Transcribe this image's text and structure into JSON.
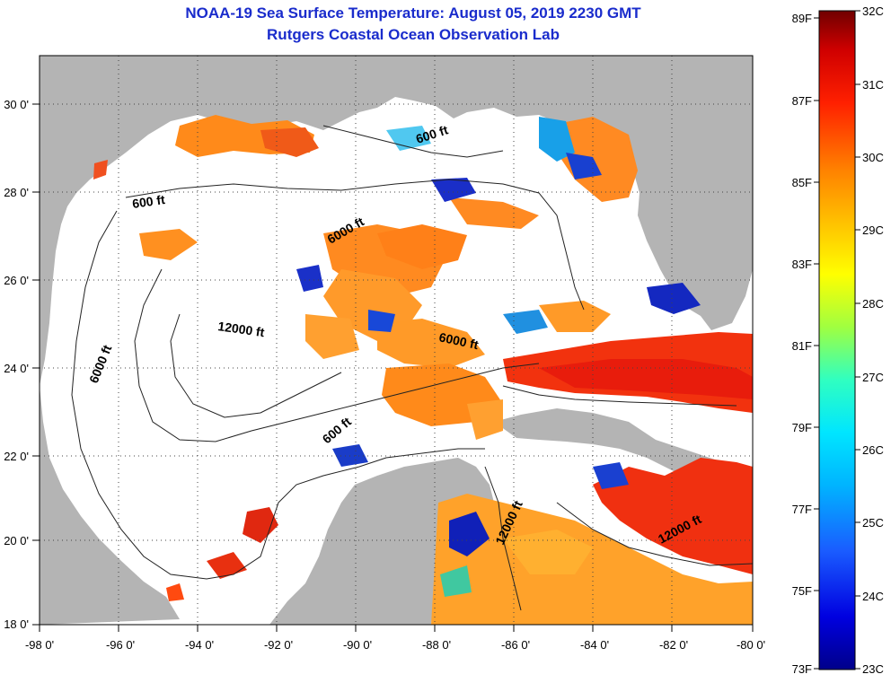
{
  "title": "NOAA-19 Sea Surface Temperature:  August 05, 2019 2230 GMT",
  "subtitle": "Rutgers Coastal Ocean Observation Lab",
  "lon_labels": [
    "-98 0'",
    "-96 0'",
    "-94 0'",
    "-92 0'",
    "-90 0'",
    "-88 0'",
    "-86 0'",
    "-84 0'",
    "-82 0'",
    "-80 0'"
  ],
  "lat_labels": [
    "30 0'",
    "28 0'",
    "26 0'",
    "24 0'",
    "22 0'",
    "20 0'",
    "18 0'"
  ],
  "contours": {
    "c1": "600 ft",
    "c2": "600 ft",
    "c3": "6000 ft",
    "c4": "12000 ft",
    "c5": "6000 ft",
    "c6": "6000 ft",
    "c7": "600 ft",
    "c8": "12000 ft",
    "c9": "12000 ft"
  },
  "colorbar": {
    "fahrenheit": [
      "89F",
      "87F",
      "85F",
      "83F",
      "81F",
      "79F",
      "77F",
      "75F",
      "73F"
    ],
    "celsius": [
      "32C",
      "31C",
      "30C",
      "29C",
      "28C",
      "27C",
      "26C",
      "25C",
      "24C",
      "23C"
    ]
  },
  "colors": {
    "land": "#b4b4b4",
    "water_nodata": "#ffffff",
    "warm": "#ff7a10",
    "hot": "#e82010",
    "cool": "#1020c0",
    "title": "#1a2ccc"
  }
}
